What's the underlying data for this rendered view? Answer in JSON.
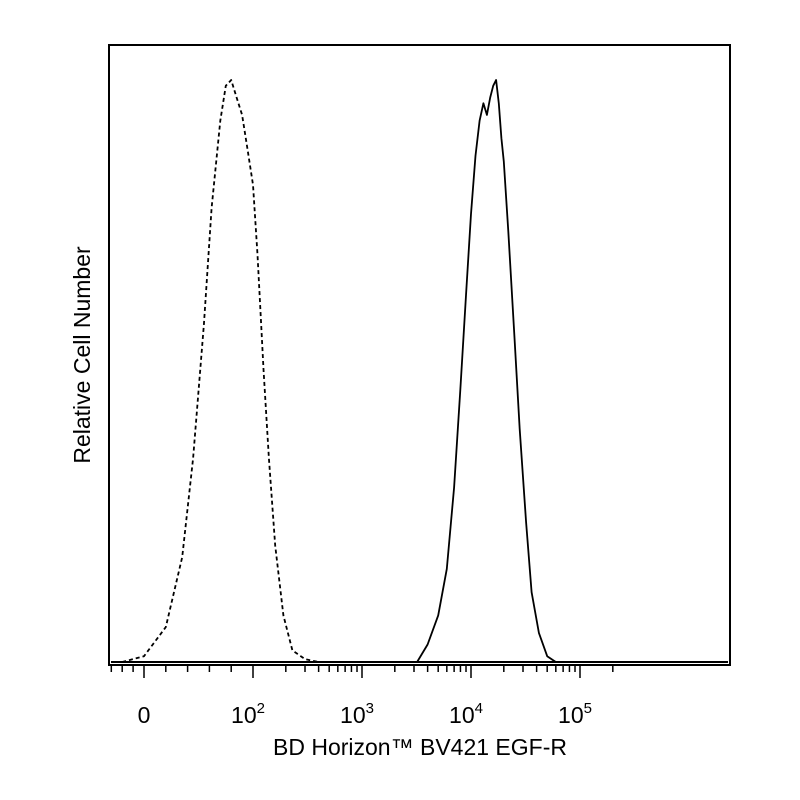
{
  "chart_data": {
    "type": "line",
    "title": "",
    "xlabel": "BD Horizon™ BV421 EGF-R",
    "ylabel": "Relative Cell Number",
    "x_scale": "biexponential",
    "x_ticks": [
      {
        "value": 0,
        "base": "0",
        "exp": ""
      },
      {
        "value": 100,
        "base": "10",
        "exp": "2"
      },
      {
        "value": 1000,
        "base": "10",
        "exp": "3"
      },
      {
        "value": 10000,
        "base": "10",
        "exp": "4"
      },
      {
        "value": 100000,
        "base": "10",
        "exp": "5"
      }
    ],
    "xlim": [
      -100,
      250000
    ],
    "ylim": [
      0,
      1
    ],
    "grid": false,
    "legend": "none",
    "series": [
      {
        "style": "dashed",
        "color": "#000000",
        "x": [
          -40,
          0,
          20,
          35,
          45,
          55,
          62,
          70,
          75,
          80,
          85,
          90,
          95,
          100,
          110,
          125,
          140,
          160,
          190,
          230,
          300,
          400,
          500
        ],
        "y": [
          0.0,
          0.01,
          0.06,
          0.18,
          0.35,
          0.58,
          0.78,
          0.93,
          0.99,
          1.0,
          0.97,
          0.94,
          0.88,
          0.82,
          0.7,
          0.5,
          0.35,
          0.2,
          0.08,
          0.02,
          0.005,
          0.0,
          0.0
        ]
      },
      {
        "style": "solid",
        "color": "#000000",
        "x": [
          3200,
          4000,
          5000,
          6000,
          7000,
          8000,
          9000,
          10000,
          11000,
          12000,
          13000,
          14000,
          15000,
          16000,
          17000,
          18000,
          19000,
          20000,
          22000,
          25000,
          28000,
          32000,
          36000,
          42000,
          50000,
          60000
        ],
        "y": [
          0.0,
          0.03,
          0.08,
          0.16,
          0.3,
          0.47,
          0.63,
          0.77,
          0.87,
          0.93,
          0.96,
          0.94,
          0.97,
          0.99,
          1.0,
          0.96,
          0.9,
          0.86,
          0.74,
          0.56,
          0.4,
          0.24,
          0.12,
          0.05,
          0.01,
          0.0
        ]
      }
    ]
  }
}
